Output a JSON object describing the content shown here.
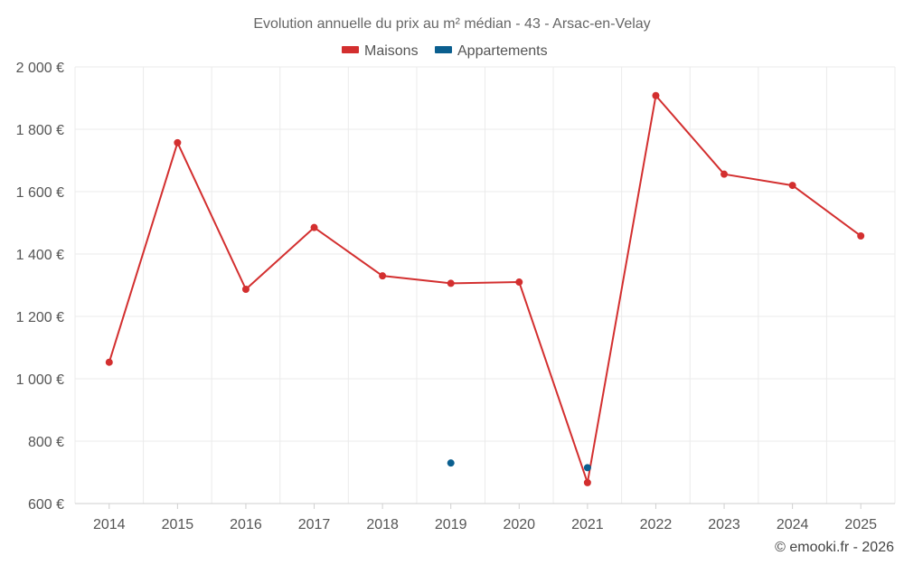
{
  "chart_data": {
    "type": "line",
    "title": "Evolution annuelle du prix au m² médian - 43 - Arsac-en-Velay",
    "categories": [
      "2014",
      "2015",
      "2016",
      "2017",
      "2018",
      "2019",
      "2020",
      "2021",
      "2022",
      "2023",
      "2024",
      "2025"
    ],
    "ylim": [
      600,
      2000
    ],
    "yticks": [
      600,
      800,
      1000,
      1200,
      1400,
      1600,
      1800,
      2000
    ],
    "ytick_labels": [
      "600 €",
      "800 €",
      "1 000 €",
      "1 200 €",
      "1 400 €",
      "1 600 €",
      "1 800 €",
      "2 000 €"
    ],
    "xlabel": "",
    "ylabel": "",
    "grid": true,
    "legend_position": "top-center",
    "series": [
      {
        "name": "Maisons",
        "color": "#d32f2f",
        "values": [
          1053,
          1757,
          1287,
          1485,
          1330,
          1306,
          1310,
          667,
          1908,
          1656,
          1620,
          1458
        ]
      },
      {
        "name": "Appartements",
        "color": "#0b5f8f",
        "values": [
          null,
          null,
          null,
          null,
          null,
          730,
          null,
          715,
          null,
          null,
          null,
          null
        ]
      }
    ]
  },
  "credit": "© emooki.fr - 2026"
}
